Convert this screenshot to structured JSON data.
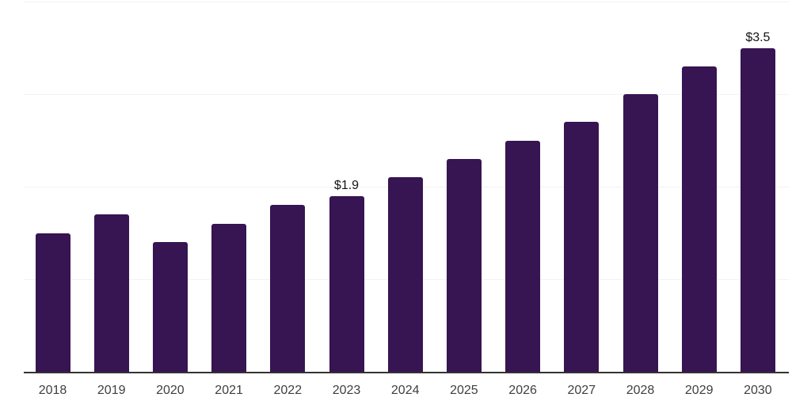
{
  "chart_data": {
    "type": "bar",
    "categories": [
      "2018",
      "2019",
      "2020",
      "2021",
      "2022",
      "2023",
      "2024",
      "2025",
      "2026",
      "2027",
      "2028",
      "2029",
      "2030"
    ],
    "values": [
      1.5,
      1.7,
      1.4,
      1.6,
      1.8,
      1.9,
      2.1,
      2.3,
      2.5,
      2.7,
      3.0,
      3.3,
      3.5
    ],
    "data_labels": [
      {
        "category": "2023",
        "text": "$1.9"
      },
      {
        "category": "2030",
        "text": "$3.5"
      }
    ],
    "ylim": [
      0,
      4
    ],
    "gridline_values": [
      1,
      2,
      3,
      4
    ],
    "grid": "horizontal",
    "legend": "none",
    "colors": {
      "bar": "#371452",
      "background": "#ffffff",
      "gridline": "#f2f2f2",
      "axis_line": "#333333",
      "tick_label": "#3f3f3f",
      "data_label": "#141414"
    }
  }
}
